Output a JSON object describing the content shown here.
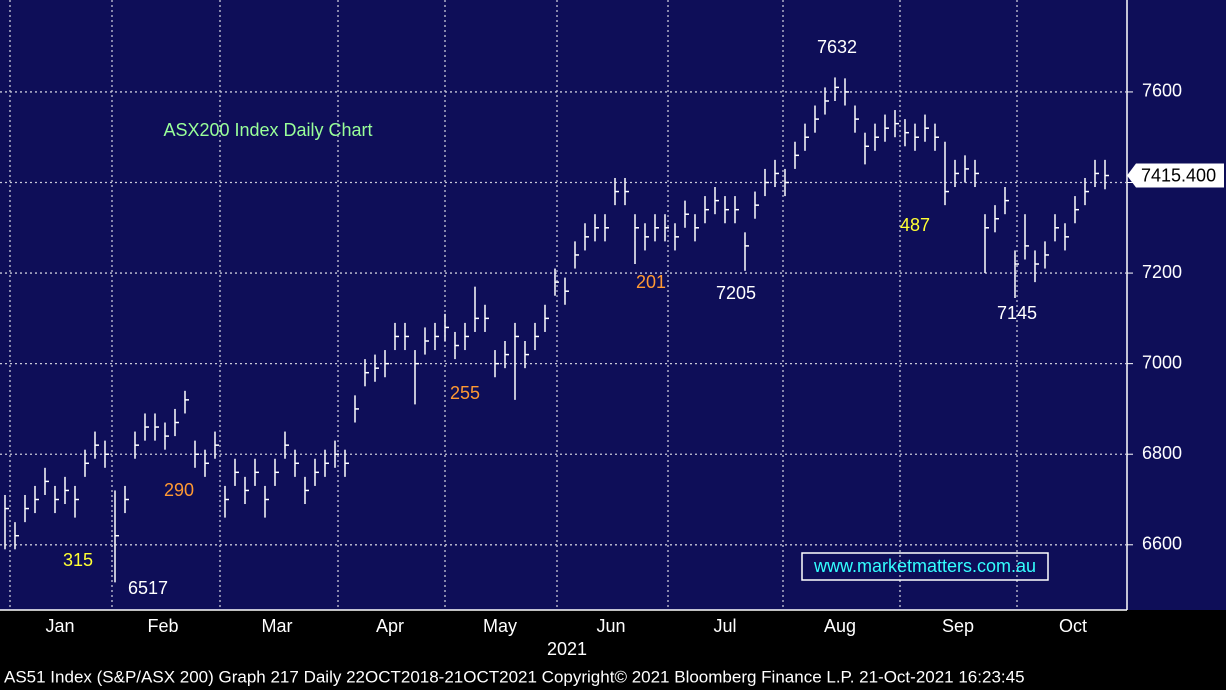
{
  "chart_data": {
    "type": "hlc",
    "title": "ASX200 Index Daily Chart",
    "categories": [
      "Jan",
      "Feb",
      "Mar",
      "Apr",
      "May",
      "Jun",
      "Jul",
      "Aug",
      "Sep",
      "Oct"
    ],
    "year_label": "2021",
    "color": "#ffffff",
    "high": [
      6710,
      6650,
      6710,
      6730,
      6770,
      6730,
      6750,
      6730,
      6810,
      6850,
      6830,
      6720,
      6730,
      6850,
      6890,
      6890,
      6870,
      6900,
      6940,
      6830,
      6810,
      6850,
      6730,
      6790,
      6750,
      6790,
      6730,
      6790,
      6850,
      6810,
      6750,
      6790,
      6810,
      6830,
      6810,
      6930,
      7010,
      7020,
      7030,
      7090,
      7090,
      7030,
      7080,
      7090,
      7110,
      7070,
      7090,
      7170,
      7130,
      7030,
      7050,
      7090,
      7050,
      7090,
      7130,
      7210,
      7190,
      7270,
      7310,
      7330,
      7330,
      7410,
      7410,
      7330,
      7310,
      7330,
      7330,
      7310,
      7360,
      7330,
      7370,
      7390,
      7370,
      7370,
      7290,
      7380,
      7430,
      7450,
      7430,
      7490,
      7530,
      7570,
      7610,
      7632,
      7630,
      7570,
      7510,
      7530,
      7550,
      7560,
      7540,
      7530,
      7550,
      7530,
      7490,
      7450,
      7460,
      7450,
      7330,
      7350,
      7390,
      7250,
      7330,
      7250,
      7270,
      7330,
      7310,
      7370,
      7410,
      7450,
      7450
    ],
    "low": [
      6590,
      6590,
      6650,
      6670,
      6710,
      6670,
      6690,
      6660,
      6750,
      6790,
      6770,
      6517,
      6670,
      6790,
      6830,
      6830,
      6810,
      6840,
      6890,
      6770,
      6750,
      6790,
      6660,
      6730,
      6690,
      6730,
      6660,
      6730,
      6790,
      6750,
      6690,
      6730,
      6750,
      6770,
      6750,
      6870,
      6950,
      6960,
      6970,
      7030,
      7030,
      6910,
      7020,
      7030,
      7050,
      7010,
      7030,
      7070,
      7070,
      6970,
      6990,
      6920,
      6990,
      7030,
      7070,
      7150,
      7130,
      7210,
      7250,
      7270,
      7270,
      7350,
      7350,
      7220,
      7250,
      7270,
      7270,
      7250,
      7300,
      7270,
      7310,
      7330,
      7310,
      7310,
      7205,
      7320,
      7370,
      7390,
      7370,
      7430,
      7470,
      7510,
      7550,
      7580,
      7570,
      7510,
      7440,
      7470,
      7490,
      7500,
      7480,
      7470,
      7490,
      7470,
      7350,
      7390,
      7400,
      7390,
      7200,
      7290,
      7330,
      7145,
      7230,
      7180,
      7210,
      7270,
      7250,
      7310,
      7350,
      7390,
      7385
    ],
    "close": [
      6680,
      6620,
      6680,
      6700,
      6740,
      6700,
      6720,
      6700,
      6780,
      6820,
      6800,
      6620,
      6700,
      6820,
      6860,
      6860,
      6840,
      6870,
      6920,
      6800,
      6780,
      6820,
      6700,
      6760,
      6720,
      6760,
      6700,
      6760,
      6820,
      6780,
      6720,
      6760,
      6780,
      6800,
      6780,
      6900,
      6980,
      6990,
      7000,
      7060,
      7060,
      7000,
      7050,
      7060,
      7080,
      7040,
      7060,
      7100,
      7100,
      7000,
      7020,
      7060,
      7020,
      7060,
      7100,
      7180,
      7160,
      7240,
      7280,
      7300,
      7300,
      7380,
      7380,
      7300,
      7280,
      7300,
      7300,
      7280,
      7330,
      7300,
      7340,
      7360,
      7340,
      7340,
      7260,
      7350,
      7400,
      7420,
      7400,
      7460,
      7500,
      7540,
      7580,
      7610,
      7600,
      7540,
      7480,
      7500,
      7520,
      7530,
      7510,
      7500,
      7520,
      7500,
      7380,
      7420,
      7430,
      7420,
      7300,
      7320,
      7360,
      7220,
      7260,
      7220,
      7240,
      7300,
      7280,
      7340,
      7380,
      7420,
      7415.4
    ],
    "last_value_label": "7415.400",
    "ylim": [
      6456,
      7803
    ],
    "yticks": [
      6600,
      6800,
      7000,
      7200,
      7400,
      7600
    ],
    "grid": true,
    "annotations": [
      {
        "text": "315",
        "color": "#ffff33"
      },
      {
        "text": "6517",
        "color": "#ffffff"
      },
      {
        "text": "290",
        "color": "#ff9933"
      },
      {
        "text": "255",
        "color": "#ff9933"
      },
      {
        "text": "201",
        "color": "#ff9933"
      },
      {
        "text": "7205",
        "color": "#ffffff"
      },
      {
        "text": "7632",
        "color": "#ffffff"
      },
      {
        "text": "487",
        "color": "#ffff33"
      },
      {
        "text": "7145",
        "color": "#ffffff"
      }
    ],
    "source": "www.marketmatters.com.au",
    "footer": "AS51 Index (S&P/ASX 200) Graph 217  Daily 22OCT2018-21OCT2021 Copyright© 2021 Bloomberg Finance L.P. 21-Oct-2021 16:23:45"
  }
}
